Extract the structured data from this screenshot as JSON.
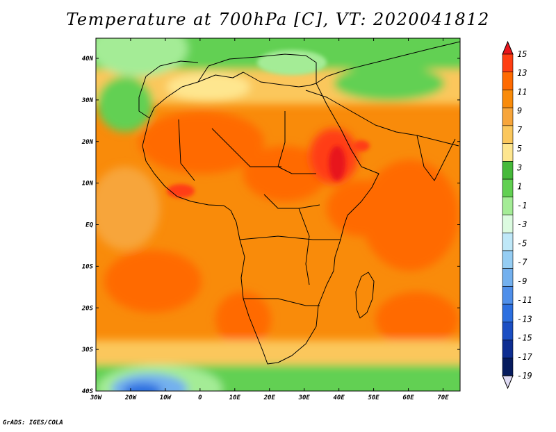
{
  "title": "Temperature at 700hPa [C], VT: 2020041812",
  "credit": "GrADS: IGES/COLA",
  "map": {
    "lat_labels": [
      "40N",
      "30N",
      "20N",
      "10N",
      "EQ",
      "10S",
      "20S",
      "30S",
      "40S"
    ],
    "lon_labels": [
      "30W",
      "20W",
      "10W",
      "0",
      "10E",
      "20E",
      "30E",
      "40E",
      "50E",
      "60E",
      "70E"
    ]
  },
  "colorbar": {
    "labels": [
      "15",
      "13",
      "11",
      "9",
      "7",
      "5",
      "3",
      "1",
      "-1",
      "-3",
      "-5",
      "-7",
      "-9",
      "-11",
      "-13",
      "-15",
      "-17",
      "-19"
    ],
    "colors": [
      "#e8151b",
      "#ff3e12",
      "#ff6a00",
      "#f98b0a",
      "#f7a53a",
      "#fbc75c",
      "#fee68f",
      "#46b93a",
      "#62d052",
      "#a4ec96",
      "#dcfbe0",
      "#bfe8f8",
      "#95cdf3",
      "#73b0ee",
      "#4f8fea",
      "#2c6fe0",
      "#1b4ec3",
      "#0d2d91",
      "#061b5e",
      "#e0dcf5"
    ]
  }
}
